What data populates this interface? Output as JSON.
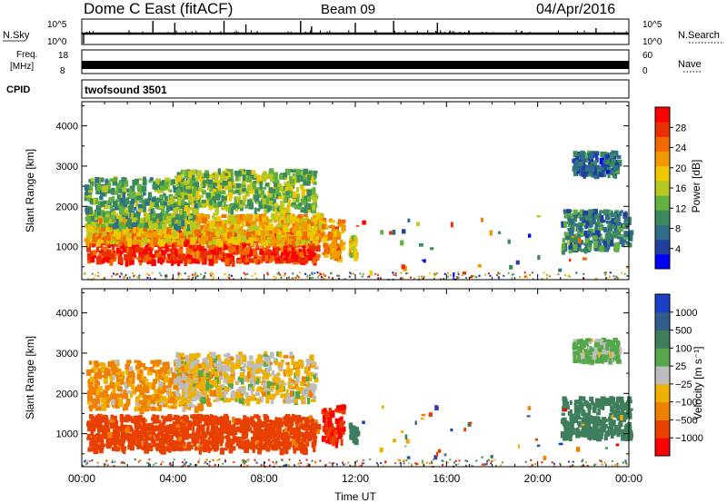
{
  "header": {
    "station": "Dome C East (fitACF)",
    "beam": "Beam 09",
    "date": "04/Apr/2016"
  },
  "panels": {
    "nsky_label": "N.Sky",
    "nsky_ticks": [
      "10^5",
      "10^0"
    ],
    "nsearch_label": "N.Search",
    "nsearch_ticks": [
      "10^5",
      "10^0"
    ],
    "freq_label_1": "Freq.",
    "freq_label_2": "[MHz]",
    "freq_ticks": [
      "18",
      "8"
    ],
    "nave_label": "Nave",
    "nave_ticks": [
      "60",
      "0"
    ],
    "cpid_label": "CPID",
    "cpid_value": "twofsound 3501"
  },
  "chart_data": [
    {
      "type": "heatmap",
      "name": "power-panel",
      "xlabel": "",
      "ylabel": "Slant Range [km]",
      "x_ticks": [
        "00:00",
        "04:00",
        "08:00",
        "12:00",
        "16:00",
        "20:00",
        "00:00"
      ],
      "y_ticks": [
        "1000",
        "2000",
        "3000",
        "4000"
      ],
      "xlim_hours": [
        0,
        24
      ],
      "ylim_km": [
        180,
        4600
      ],
      "colorbar": {
        "label": "Power [dB]",
        "ticks": [
          "28",
          "24",
          "20",
          "16",
          "12",
          "8",
          "4"
        ],
        "colors": [
          "#0000ff",
          "#2040a0",
          "#2f6e8a",
          "#3a8a5e",
          "#62b040",
          "#b8c820",
          "#f0c800",
          "#f09a00",
          "#f06a00",
          "#e83000",
          "#ff0000"
        ]
      },
      "regions": [
        {
          "t0": 0.2,
          "t1": 10.3,
          "r0": 620,
          "r1": 1400,
          "value": 28
        },
        {
          "t0": 0.1,
          "t1": 10.5,
          "r0": 1100,
          "r1": 1800,
          "value": 20
        },
        {
          "t0": 0.1,
          "t1": 5.0,
          "r0": 1500,
          "r1": 2700,
          "value": 12
        },
        {
          "t0": 4.0,
          "t1": 10.2,
          "r0": 1900,
          "r1": 2900,
          "value": 14
        },
        {
          "t0": 10.5,
          "t1": 11.4,
          "r0": 700,
          "r1": 1700,
          "value": 22
        },
        {
          "t0": 11.7,
          "t1": 12.0,
          "r0": 750,
          "r1": 1250,
          "value": 18
        },
        {
          "t0": 21.0,
          "t1": 24.0,
          "r0": 900,
          "r1": 1900,
          "value": 9
        },
        {
          "t0": 21.5,
          "t1": 23.5,
          "r0": 2800,
          "r1": 3350,
          "value": 7
        }
      ]
    },
    {
      "type": "heatmap",
      "name": "velocity-panel",
      "xlabel": "Time UT",
      "ylabel": "Slant Range [km]",
      "x_ticks": [
        "00:00",
        "04:00",
        "08:00",
        "12:00",
        "16:00",
        "20:00",
        "00:00"
      ],
      "y_ticks": [
        "1000",
        "2000",
        "3000",
        "4000"
      ],
      "xlim_hours": [
        0,
        24
      ],
      "ylim_km": [
        180,
        4600
      ],
      "colorbar": {
        "label": "Velocity [m s⁻¹]",
        "ticks": [
          "1000",
          "500",
          "100",
          "25",
          "−25",
          "−100",
          "−500",
          "−1000"
        ],
        "colors": [
          "#1a3fc8",
          "#2f5e8a",
          "#3e7e5c",
          "#55a84a",
          "#bdbdbd",
          "#f0b000",
          "#f08000",
          "#e84000",
          "#ff0000"
        ]
      },
      "regions": [
        {
          "t0": 0.2,
          "t1": 10.3,
          "r0": 600,
          "r1": 1450,
          "value": -200
        },
        {
          "t0": 0.2,
          "t1": 5.5,
          "r0": 1600,
          "r1": 2800,
          "value": -40
        },
        {
          "t0": 4.0,
          "t1": 10.2,
          "r0": 1800,
          "r1": 3000,
          "value": 0
        },
        {
          "t0": 10.5,
          "t1": 11.4,
          "r0": 700,
          "r1": 1700,
          "value": -500
        },
        {
          "t0": 11.7,
          "t1": 12.0,
          "r0": 800,
          "r1": 1250,
          "value": 300
        },
        {
          "t0": 21.0,
          "t1": 24.0,
          "r0": 900,
          "r1": 1900,
          "value": 300
        },
        {
          "t0": 21.5,
          "t1": 23.5,
          "r0": 2800,
          "r1": 3350,
          "value": 40
        }
      ]
    }
  ]
}
